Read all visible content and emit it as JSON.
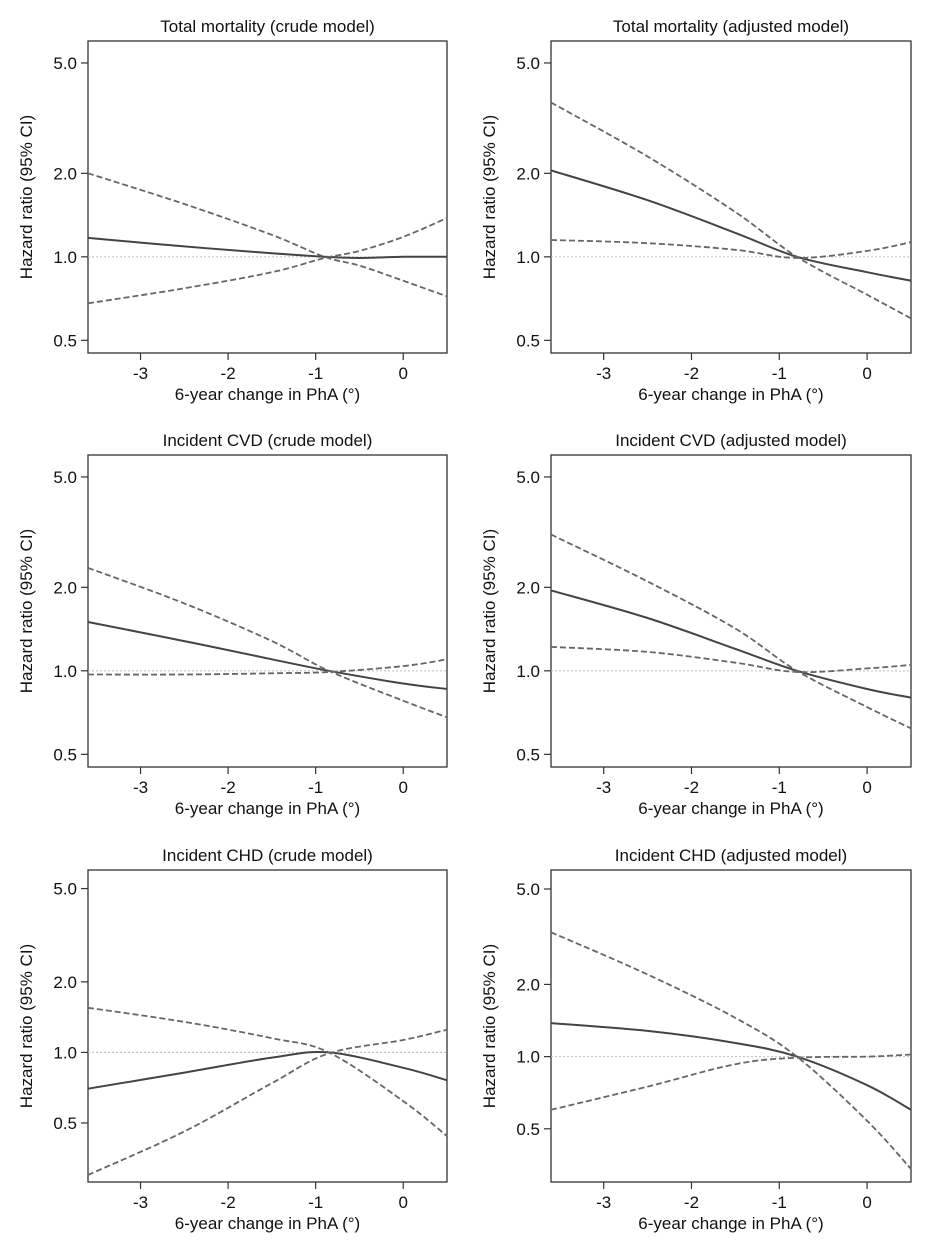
{
  "chart_data": [
    {
      "type": "line",
      "title": "Total mortality (crude model)",
      "xlabel": "6-year change in PhA (°)",
      "ylabel": "Hazard ratio (95% CI)",
      "y_scale": "log",
      "xlim": [
        -3.6,
        0.5
      ],
      "ylim": [
        0.45,
        6.0
      ],
      "x_ticks": [
        -3,
        -2,
        -1,
        0
      ],
      "x_tick_labels": [
        "-3",
        "-2",
        "-1",
        "0"
      ],
      "y_ticks": [
        0.5,
        1.0,
        2.0,
        5.0
      ],
      "y_tick_labels": [
        "0.5",
        "1.0",
        "2.0",
        "5.0"
      ],
      "reference_line": 1.0,
      "series": [
        {
          "name": "Hazard ratio",
          "style": "solid",
          "x": [
            -3.6,
            -2.5,
            -1.5,
            -0.9,
            -0.5,
            0.0,
            0.5
          ],
          "y": [
            1.17,
            1.09,
            1.03,
            1.0,
            0.99,
            1.0,
            1.0
          ]
        },
        {
          "name": "Upper 95% CI",
          "style": "dashed",
          "x": [
            -3.6,
            -2.5,
            -1.5,
            -0.9,
            -0.5,
            0.0,
            0.5
          ],
          "y": [
            2.0,
            1.55,
            1.2,
            1.0,
            0.93,
            0.82,
            0.72
          ]
        },
        {
          "name": "Lower 95% CI",
          "style": "dashed",
          "x": [
            -3.6,
            -2.5,
            -1.5,
            -0.9,
            -0.5,
            0.0,
            0.5
          ],
          "y": [
            0.68,
            0.77,
            0.88,
            0.99,
            1.05,
            1.18,
            1.38
          ]
        }
      ]
    },
    {
      "type": "line",
      "title": "Total mortality (adjusted model)",
      "xlabel": "6-year change in PhA (°)",
      "ylabel": "Hazard ratio (95% CI)",
      "y_scale": "log",
      "xlim": [
        -3.6,
        0.5
      ],
      "ylim": [
        0.45,
        6.0
      ],
      "x_ticks": [
        -3,
        -2,
        -1,
        0
      ],
      "x_tick_labels": [
        "-3",
        "-2",
        "-1",
        "0"
      ],
      "y_ticks": [
        0.5,
        1.0,
        2.0,
        5.0
      ],
      "y_tick_labels": [
        "0.5",
        "1.0",
        "2.0",
        "5.0"
      ],
      "reference_line": 1.0,
      "series": [
        {
          "name": "Hazard ratio",
          "style": "solid",
          "x": [
            -3.6,
            -2.5,
            -1.5,
            -0.8,
            0.0,
            0.5
          ],
          "y": [
            2.05,
            1.6,
            1.22,
            1.0,
            0.88,
            0.82
          ]
        },
        {
          "name": "Upper 95% CI",
          "style": "dashed",
          "x": [
            -3.6,
            -2.5,
            -1.5,
            -0.8,
            0.0,
            0.5
          ],
          "y": [
            3.6,
            2.3,
            1.45,
            1.0,
            0.73,
            0.6
          ]
        },
        {
          "name": "Lower 95% CI",
          "style": "dashed",
          "x": [
            -3.6,
            -2.5,
            -1.5,
            -0.8,
            0.0,
            0.5
          ],
          "y": [
            1.15,
            1.12,
            1.06,
            0.99,
            1.05,
            1.13
          ]
        }
      ]
    },
    {
      "type": "line",
      "title": "Incident CVD (crude model)",
      "xlabel": "6-year change in PhA (°)",
      "ylabel": "Hazard ratio (95% CI)",
      "y_scale": "log",
      "xlim": [
        -3.6,
        0.5
      ],
      "ylim": [
        0.45,
        6.0
      ],
      "x_ticks": [
        -3,
        -2,
        -1,
        0
      ],
      "x_tick_labels": [
        "-3",
        "-2",
        "-1",
        "0"
      ],
      "y_ticks": [
        0.5,
        1.0,
        2.0,
        5.0
      ],
      "y_tick_labels": [
        "0.5",
        "1.0",
        "2.0",
        "5.0"
      ],
      "reference_line": 1.0,
      "series": [
        {
          "name": "Hazard ratio",
          "style": "solid",
          "x": [
            -3.6,
            -2.5,
            -1.5,
            -0.85,
            0.0,
            0.5
          ],
          "y": [
            1.5,
            1.28,
            1.1,
            1.0,
            0.9,
            0.86
          ]
        },
        {
          "name": "Upper 95% CI",
          "style": "dashed",
          "x": [
            -3.6,
            -2.5,
            -1.5,
            -0.85,
            0.0,
            0.5
          ],
          "y": [
            2.35,
            1.75,
            1.28,
            1.0,
            0.78,
            0.68
          ]
        },
        {
          "name": "Lower 95% CI",
          "style": "dashed",
          "x": [
            -3.6,
            -2.5,
            -1.5,
            -0.85,
            0.0,
            0.5
          ],
          "y": [
            0.97,
            0.97,
            0.98,
            0.99,
            1.04,
            1.1
          ]
        }
      ]
    },
    {
      "type": "line",
      "title": "Incident CVD (adjusted model)",
      "xlabel": "6-year change in PhA (°)",
      "ylabel": "Hazard ratio (95% CI)",
      "y_scale": "log",
      "xlim": [
        -3.6,
        0.5
      ],
      "ylim": [
        0.45,
        6.0
      ],
      "x_ticks": [
        -3,
        -2,
        -1,
        0
      ],
      "x_tick_labels": [
        "-3",
        "-2",
        "-1",
        "0"
      ],
      "y_ticks": [
        0.5,
        1.0,
        2.0,
        5.0
      ],
      "y_tick_labels": [
        "0.5",
        "1.0",
        "2.0",
        "5.0"
      ],
      "reference_line": 1.0,
      "series": [
        {
          "name": "Hazard ratio",
          "style": "solid",
          "x": [
            -3.6,
            -2.5,
            -1.5,
            -0.8,
            0.0,
            0.5
          ],
          "y": [
            1.95,
            1.55,
            1.2,
            1.0,
            0.86,
            0.8
          ]
        },
        {
          "name": "Upper 95% CI",
          "style": "dashed",
          "x": [
            -3.6,
            -2.5,
            -1.5,
            -0.8,
            0.0,
            0.5
          ],
          "y": [
            3.1,
            2.1,
            1.42,
            1.0,
            0.74,
            0.62
          ]
        },
        {
          "name": "Lower 95% CI",
          "style": "dashed",
          "x": [
            -3.6,
            -2.5,
            -1.5,
            -0.8,
            0.0,
            0.5
          ],
          "y": [
            1.22,
            1.17,
            1.07,
            0.99,
            1.02,
            1.05
          ]
        }
      ]
    },
    {
      "type": "line",
      "title": "Incident CHD (crude model)",
      "xlabel": "6-year change in PhA (°)",
      "ylabel": "Hazard ratio (95% CI)",
      "y_scale": "log",
      "xlim": [
        -3.6,
        0.5
      ],
      "ylim": [
        0.28,
        6.0
      ],
      "x_ticks": [
        -3,
        -2,
        -1,
        0
      ],
      "x_tick_labels": [
        "-3",
        "-2",
        "-1",
        "0"
      ],
      "y_ticks": [
        0.5,
        1.0,
        2.0,
        5.0
      ],
      "y_tick_labels": [
        "0.5",
        "1.0",
        "2.0",
        "5.0"
      ],
      "reference_line": 1.0,
      "series": [
        {
          "name": "Hazard ratio",
          "style": "solid",
          "x": [
            -3.6,
            -2.5,
            -1.5,
            -0.85,
            0.0,
            0.5
          ],
          "y": [
            0.7,
            0.82,
            0.95,
            1.0,
            0.86,
            0.76
          ]
        },
        {
          "name": "Upper 95% CI",
          "style": "dashed",
          "x": [
            -3.6,
            -2.5,
            -1.5,
            -0.85,
            0.0,
            0.5
          ],
          "y": [
            1.55,
            1.35,
            1.15,
            1.0,
            0.62,
            0.44
          ]
        },
        {
          "name": "Lower 95% CI",
          "style": "dashed",
          "x": [
            -3.6,
            -2.5,
            -1.5,
            -0.85,
            0.0,
            0.5
          ],
          "y": [
            0.3,
            0.46,
            0.74,
            0.99,
            1.13,
            1.25
          ]
        }
      ]
    },
    {
      "type": "line",
      "title": "Incident CHD (adjusted model)",
      "xlabel": "6-year change in PhA (°)",
      "ylabel": "Hazard ratio (95% CI)",
      "y_scale": "log",
      "xlim": [
        -3.6,
        0.5
      ],
      "ylim": [
        0.3,
        6.0
      ],
      "x_ticks": [
        -3,
        -2,
        -1,
        0
      ],
      "x_tick_labels": [
        "-3",
        "-2",
        "-1",
        "0"
      ],
      "y_ticks": [
        0.5,
        1.0,
        2.0,
        5.0
      ],
      "y_tick_labels": [
        "0.5",
        "1.0",
        "2.0",
        "5.0"
      ],
      "reference_line": 1.0,
      "series": [
        {
          "name": "Hazard ratio",
          "style": "solid",
          "x": [
            -3.6,
            -2.5,
            -1.5,
            -0.8,
            0.0,
            0.5
          ],
          "y": [
            1.38,
            1.28,
            1.14,
            1.0,
            0.76,
            0.6
          ]
        },
        {
          "name": "Upper 95% CI",
          "style": "dashed",
          "x": [
            -3.6,
            -2.5,
            -1.5,
            -0.8,
            0.0,
            0.5
          ],
          "y": [
            3.3,
            2.2,
            1.45,
            1.0,
            0.54,
            0.34
          ]
        },
        {
          "name": "Lower 95% CI",
          "style": "dashed",
          "x": [
            -3.6,
            -2.5,
            -1.5,
            -0.8,
            0.0,
            0.5
          ],
          "y": [
            0.6,
            0.75,
            0.93,
            0.99,
            1.0,
            1.02
          ]
        }
      ]
    }
  ]
}
